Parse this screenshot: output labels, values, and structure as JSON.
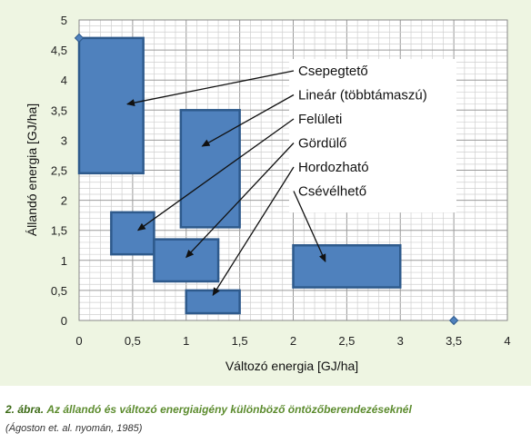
{
  "chart_data": {
    "type": "rectangle-range",
    "xlabel": "Változó energia [GJ/ha]",
    "ylabel": "Állandó energia [GJ/ha]",
    "xlim": [
      0,
      4
    ],
    "ylim": [
      0,
      5
    ],
    "x_ticks": [
      "0",
      "0,5",
      "1",
      "1,5",
      "2",
      "2,5",
      "3",
      "3,5",
      "4"
    ],
    "y_ticks": [
      "0",
      "0,5",
      "1",
      "1,5",
      "2",
      "2,5",
      "3",
      "3,5",
      "4",
      "4,5",
      "5"
    ],
    "grid": true,
    "minor_grid": true,
    "colors": {
      "box_fill": "#4f81bd",
      "box_stroke": "#2e5a8c",
      "background": "#eef5e2"
    },
    "ranges": [
      {
        "x": [
          0.0,
          0.6
        ],
        "y": [
          2.45,
          4.7
        ],
        "arrow_tip": [
          0.45,
          3.6
        ]
      },
      {
        "x": [
          0.95,
          1.5
        ],
        "y": [
          1.55,
          3.5
        ],
        "arrow_tip": [
          1.15,
          2.9
        ]
      },
      {
        "x": [
          0.3,
          0.7
        ],
        "y": [
          1.1,
          1.8
        ],
        "arrow_tip": [
          0.55,
          1.5
        ]
      },
      {
        "x": [
          0.7,
          1.3
        ],
        "y": [
          0.65,
          1.35
        ],
        "arrow_tip": [
          1.0,
          1.05
        ]
      },
      {
        "x": [
          1.0,
          1.5
        ],
        "y": [
          0.12,
          0.5
        ],
        "arrow_tip": [
          1.25,
          0.42
        ]
      },
      {
        "x": [
          2.0,
          3.0
        ],
        "y": [
          0.55,
          1.25
        ],
        "arrow_tip": [
          2.3,
          0.98
        ]
      }
    ],
    "markers": [
      {
        "x": 0.0,
        "y": 4.7
      },
      {
        "x": 3.5,
        "y": 0.0
      }
    ],
    "legend": [
      "Csepegtető",
      "Lineár (többtámaszú)",
      "Felületi",
      "Gördülő",
      "Hordozható",
      "Csévélhető"
    ]
  },
  "caption": {
    "number": "2. ábra.",
    "title": "Az állandó és változó energiaigény különböző öntözőberendezéseknél",
    "source": "(Ágoston et. al. nyomán, 1985)"
  }
}
